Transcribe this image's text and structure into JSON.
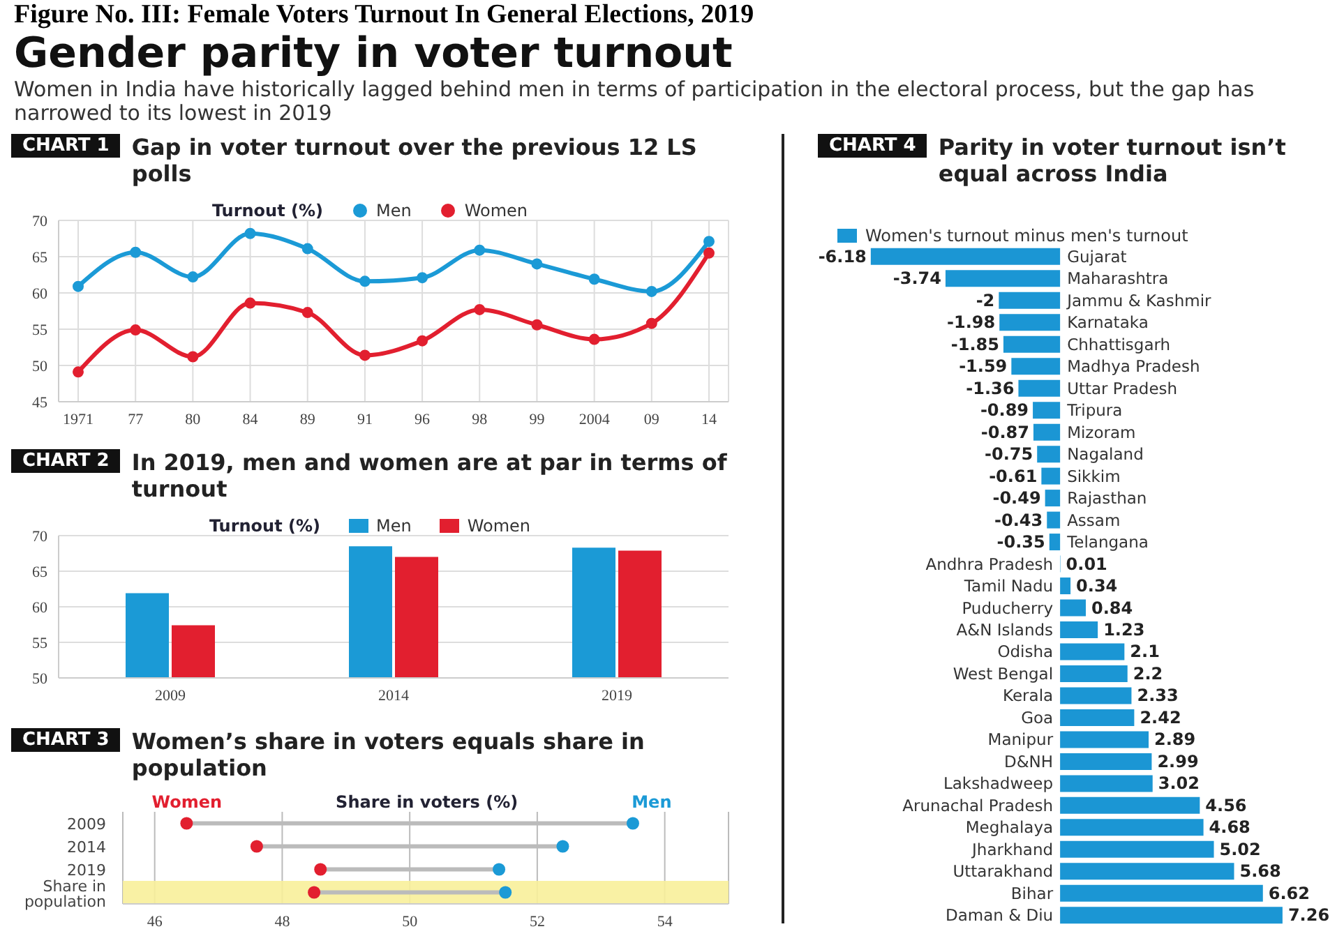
{
  "chart_data": [
    {
      "type": "line",
      "title": "Gap in voter turnout over the previous 12 LS polls",
      "annotations": [
        "Figure No. III: Female Voters Turnout In General Elections, 2019",
        "Gender parity in voter turnout",
        "Women in India have historically lagged behind men in terms of participation in the electoral process, but the gap has narrowed to its lowest in 2019",
        "CHART 1"
      ],
      "legend_title": "Turnout (%)",
      "categories": [
        "1971",
        "77",
        "80",
        "84",
        "89",
        "91",
        "96",
        "98",
        "99",
        "2004",
        "09",
        "14"
      ],
      "series": [
        {
          "name": "Men",
          "color": "#1b9ad6",
          "values": [
            60.9,
            65.6,
            62.2,
            68.2,
            66.1,
            61.6,
            62.1,
            65.9,
            64.0,
            61.9,
            60.2,
            67.1
          ]
        },
        {
          "name": "Women",
          "color": "#e21f2f",
          "values": [
            49.1,
            54.9,
            51.2,
            58.6,
            57.3,
            51.4,
            53.4,
            57.7,
            55.6,
            53.6,
            55.8,
            65.5
          ]
        }
      ],
      "ylim": [
        45,
        70
      ],
      "yticks": [
        45,
        50,
        55,
        60,
        65,
        70
      ],
      "grid": true,
      "legend": "top",
      "marker": "circle"
    },
    {
      "type": "bar",
      "title": "In 2019, men and women are at par in terms of turnout",
      "annotations": [
        "CHART 2"
      ],
      "legend_title": "Turnout (%)",
      "categories": [
        "2009",
        "2014",
        "2019"
      ],
      "series": [
        {
          "name": "Men",
          "color": "#1b9ad6",
          "values": [
            61.9,
            68.5,
            68.3
          ]
        },
        {
          "name": "Women",
          "color": "#e21f2f",
          "values": [
            57.4,
            67.0,
            67.9
          ]
        }
      ],
      "ylim": [
        50,
        70
      ],
      "yticks": [
        50,
        55,
        60,
        65,
        70
      ],
      "grid": "y",
      "legend": "top"
    },
    {
      "type": "scatter",
      "orientation": "horizontal",
      "title": "Women’s share in voters equals share in population",
      "annotations": [
        "CHART 3"
      ],
      "legend_title": "Share in voters (%)",
      "categories": [
        "2009",
        "2014",
        "2019",
        "Share in population"
      ],
      "series": [
        {
          "name": "Women",
          "color": "#e21f2f",
          "values": [
            46.5,
            47.6,
            48.6,
            48.5
          ]
        },
        {
          "name": "Men",
          "color": "#1b9ad6",
          "values": [
            53.5,
            52.4,
            51.4,
            51.5
          ]
        }
      ],
      "xlim": [
        45.5,
        55
      ],
      "xticks": [
        46,
        48,
        50,
        52,
        54
      ],
      "grid": "x",
      "legend": "top",
      "bands": [
        {
          "axis": "y",
          "from": "Share in population",
          "to": "Share in population",
          "color": "#f8f09a"
        }
      ]
    },
    {
      "type": "bar",
      "orientation": "horizontal",
      "title": "Parity in voter turnout isn’t equal across India",
      "annotations": [
        "CHART 4"
      ],
      "categories": [
        "Gujarat",
        "Maharashtra",
        "Jammu & Kashmir",
        "Karnataka",
        "Chhattisgarh",
        "Madhya Pradesh",
        "Uttar Pradesh",
        "Tripura",
        "Mizoram",
        "Nagaland",
        "Sikkim",
        "Rajasthan",
        "Assam",
        "Telangana",
        "Andhra Pradesh",
        "Tamil Nadu",
        "Puducherry",
        "A&N Islands",
        "Odisha",
        "West Bengal",
        "Kerala",
        "Goa",
        "Manipur",
        "D&NH",
        "Lakshadweep",
        "Arunachal Pradesh",
        "Meghalaya",
        "Jharkhand",
        "Uttarakhand",
        "Bihar",
        "Daman & Diu"
      ],
      "series": [
        {
          "name": "Women's turnout minus men's turnout",
          "color": "#1b96d4",
          "values": [
            -6.18,
            -3.74,
            -2,
            -1.98,
            -1.85,
            -1.59,
            -1.36,
            -0.89,
            -0.87,
            -0.75,
            -0.61,
            -0.49,
            -0.43,
            -0.35,
            0.01,
            0.34,
            0.84,
            1.23,
            2.1,
            2.2,
            2.33,
            2.42,
            2.89,
            2.99,
            3.02,
            4.56,
            4.68,
            5.02,
            5.68,
            6.62,
            7.26
          ]
        }
      ],
      "data_labels": true,
      "legend": "top left"
    }
  ]
}
